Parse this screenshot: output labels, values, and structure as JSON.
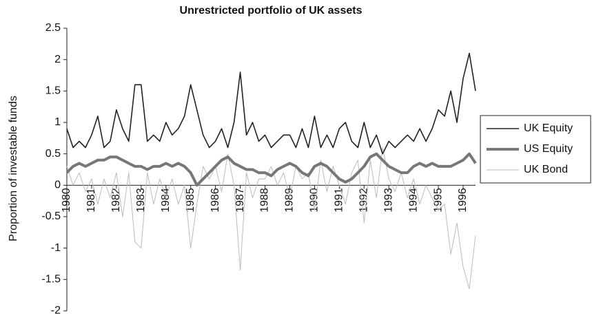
{
  "chart_data": {
    "type": "line",
    "title": "Unrestricted portfolio of UK assets",
    "y_label": "Proportion of investable funds",
    "xlim": [
      1980,
      1996.5
    ],
    "xticks": [
      1980,
      1981,
      1982,
      1983,
      1984,
      1985,
      1986,
      1987,
      1988,
      1989,
      1990,
      1991,
      1992,
      1993,
      1994,
      1995,
      1996
    ],
    "ylim": [
      -2,
      2.5
    ],
    "yticks": [
      2.5,
      2,
      1.5,
      1,
      0.5,
      0,
      -0.5,
      -1,
      -1.5,
      -2
    ],
    "legend": "right",
    "x": [
      1980,
      1980.25,
      1980.5,
      1980.75,
      1981,
      1981.25,
      1981.5,
      1981.75,
      1982,
      1982.25,
      1982.5,
      1982.75,
      1983,
      1983.25,
      1983.5,
      1983.75,
      1984,
      1984.25,
      1984.5,
      1984.75,
      1985,
      1985.25,
      1985.5,
      1985.75,
      1986,
      1986.25,
      1986.5,
      1986.75,
      1987,
      1987.25,
      1987.5,
      1987.75,
      1988,
      1988.25,
      1988.5,
      1988.75,
      1989,
      1989.25,
      1989.5,
      1989.75,
      1990,
      1990.25,
      1990.5,
      1990.75,
      1991,
      1991.25,
      1991.5,
      1991.75,
      1992,
      1992.25,
      1992.5,
      1992.75,
      1993,
      1993.25,
      1993.5,
      1993.75,
      1994,
      1994.25,
      1994.5,
      1994.75,
      1995,
      1995.25,
      1995.5,
      1995.75,
      1996,
      1996.25,
      1996.5
    ],
    "series": [
      {
        "name": "UK Equity",
        "color": "#222222",
        "values": [
          0.9,
          0.6,
          0.7,
          0.6,
          0.8,
          1.1,
          0.6,
          0.7,
          1.2,
          0.9,
          0.7,
          1.6,
          1.6,
          0.7,
          0.8,
          0.7,
          1.0,
          0.8,
          0.9,
          1.1,
          1.6,
          1.2,
          0.8,
          0.6,
          0.7,
          0.9,
          0.6,
          1.0,
          1.8,
          0.8,
          1.0,
          0.7,
          0.8,
          0.6,
          0.7,
          0.8,
          0.8,
          0.6,
          0.9,
          0.6,
          1.1,
          0.6,
          0.8,
          0.6,
          0.9,
          1.0,
          0.7,
          0.6,
          1.0,
          0.6,
          0.8,
          0.5,
          0.7,
          0.6,
          0.7,
          0.8,
          0.7,
          0.9,
          0.7,
          0.9,
          1.2,
          1.1,
          1.5,
          1.0,
          1.7,
          2.1,
          1.5
        ]
      },
      {
        "name": "US Equity",
        "color": "#777777",
        "values": [
          0.2,
          0.3,
          0.35,
          0.3,
          0.35,
          0.4,
          0.4,
          0.45,
          0.45,
          0.4,
          0.35,
          0.3,
          0.3,
          0.25,
          0.3,
          0.3,
          0.35,
          0.3,
          0.35,
          0.3,
          0.2,
          0.0,
          0.1,
          0.2,
          0.3,
          0.4,
          0.45,
          0.35,
          0.3,
          0.25,
          0.25,
          0.2,
          0.2,
          0.15,
          0.25,
          0.3,
          0.35,
          0.3,
          0.2,
          0.15,
          0.3,
          0.35,
          0.3,
          0.2,
          0.1,
          0.05,
          0.1,
          0.2,
          0.3,
          0.45,
          0.5,
          0.4,
          0.3,
          0.25,
          0.2,
          0.2,
          0.3,
          0.35,
          0.3,
          0.35,
          0.3,
          0.3,
          0.3,
          0.35,
          0.4,
          0.5,
          0.35
        ]
      },
      {
        "name": "UK Bond",
        "color": "#bbbbbb",
        "values": [
          0.3,
          0.0,
          0.2,
          -0.1,
          0.1,
          -0.3,
          0.1,
          -0.2,
          0.2,
          -0.5,
          0.2,
          -0.9,
          -1.0,
          0.2,
          -0.3,
          0.1,
          -0.2,
          0.1,
          -0.3,
          0.0,
          -1.0,
          -0.3,
          0.3,
          0.1,
          0.3,
          -0.1,
          0.5,
          0.0,
          -1.35,
          0.2,
          -0.2,
          0.1,
          0.1,
          0.3,
          0.0,
          0.2,
          -0.2,
          0.3,
          0.1,
          0.2,
          -0.4,
          0.4,
          -0.1,
          0.3,
          0.0,
          -0.3,
          0.2,
          0.4,
          -0.6,
          0.4,
          -0.2,
          0.6,
          0.1,
          -0.1,
          0.2,
          -0.2,
          0.1,
          -0.3,
          0.0,
          -0.2,
          -0.4,
          -0.3,
          -1.1,
          -0.6,
          -1.3,
          -1.65,
          -0.8
        ]
      }
    ]
  }
}
